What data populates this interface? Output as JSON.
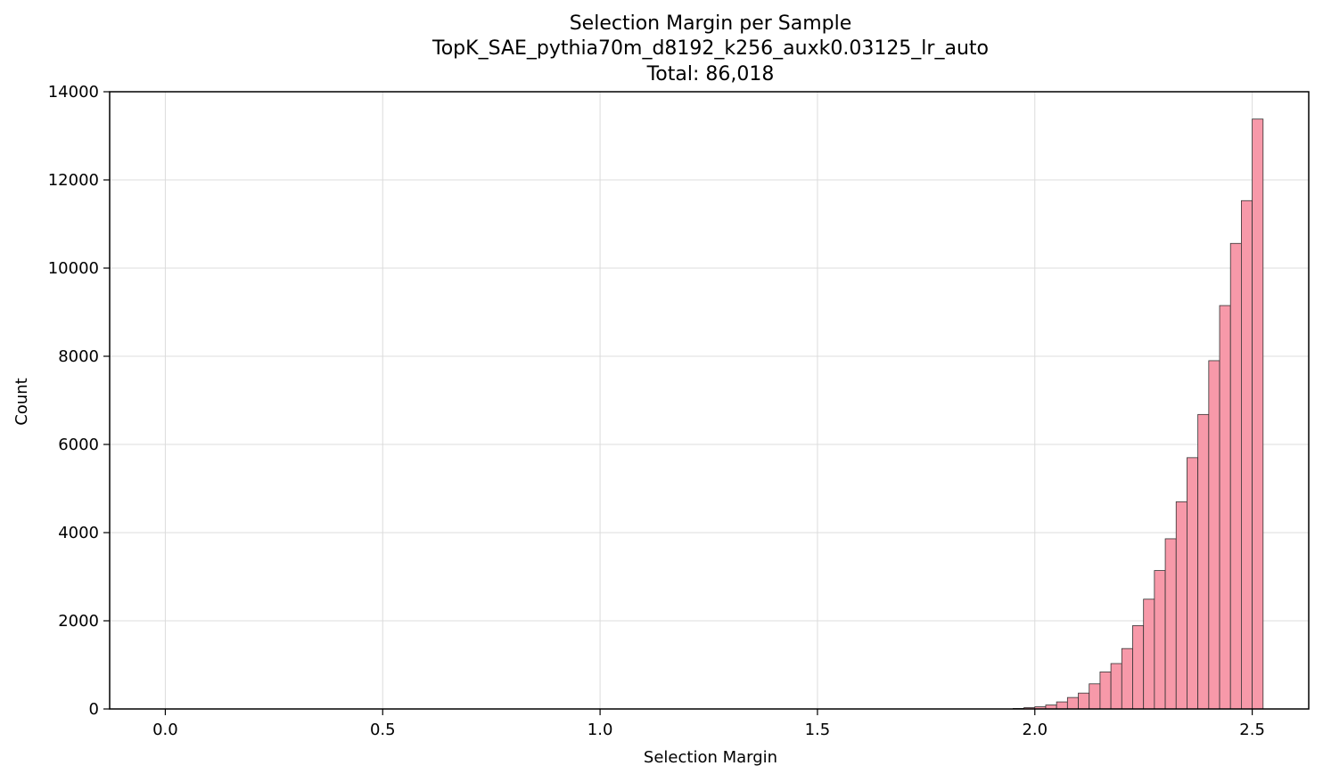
{
  "chart_data": {
    "type": "bar",
    "title_lines": [
      "Selection Margin per Sample",
      "TopK_SAE_pythia70m_d8192_k256_auxk0.03125_lr_auto",
      "Total: 86,018"
    ],
    "xlabel": "Selection Margin",
    "ylabel": "Count",
    "xlim": [
      -0.128,
      2.63
    ],
    "ylim": [
      0,
      14000
    ],
    "x_ticks": [
      "0.0",
      "0.5",
      "1.0",
      "1.5",
      "2.0",
      "2.5"
    ],
    "y_ticks": [
      "0",
      "2000",
      "4000",
      "6000",
      "8000",
      "10000",
      "12000",
      "14000"
    ],
    "grid": true,
    "bar_color": "#f799a9",
    "edge_color": "#333333",
    "bins": [
      {
        "x0": 1.95,
        "x1": 1.975,
        "count": 12
      },
      {
        "x0": 1.975,
        "x1": 2.0,
        "count": 30
      },
      {
        "x0": 2.0,
        "x1": 2.025,
        "count": 50
      },
      {
        "x0": 2.025,
        "x1": 2.05,
        "count": 90
      },
      {
        "x0": 2.05,
        "x1": 2.075,
        "count": 160
      },
      {
        "x0": 2.075,
        "x1": 2.1,
        "count": 260
      },
      {
        "x0": 2.1,
        "x1": 2.125,
        "count": 360
      },
      {
        "x0": 2.125,
        "x1": 2.15,
        "count": 570
      },
      {
        "x0": 2.15,
        "x1": 2.175,
        "count": 840
      },
      {
        "x0": 2.175,
        "x1": 2.2,
        "count": 1030
      },
      {
        "x0": 2.2,
        "x1": 2.225,
        "count": 1370
      },
      {
        "x0": 2.225,
        "x1": 2.25,
        "count": 1890
      },
      {
        "x0": 2.25,
        "x1": 2.275,
        "count": 2490
      },
      {
        "x0": 2.275,
        "x1": 2.3,
        "count": 3140
      },
      {
        "x0": 2.3,
        "x1": 2.325,
        "count": 3860
      },
      {
        "x0": 2.325,
        "x1": 2.35,
        "count": 4700
      },
      {
        "x0": 2.35,
        "x1": 2.375,
        "count": 5700
      },
      {
        "x0": 2.375,
        "x1": 2.4,
        "count": 6680
      },
      {
        "x0": 2.4,
        "x1": 2.425,
        "count": 7900
      },
      {
        "x0": 2.425,
        "x1": 2.45,
        "count": 9150
      },
      {
        "x0": 2.45,
        "x1": 2.475,
        "count": 10560
      },
      {
        "x0": 2.475,
        "x1": 2.5,
        "count": 11530
      },
      {
        "x0": 2.5,
        "x1": 2.525,
        "count": 13380
      }
    ]
  }
}
